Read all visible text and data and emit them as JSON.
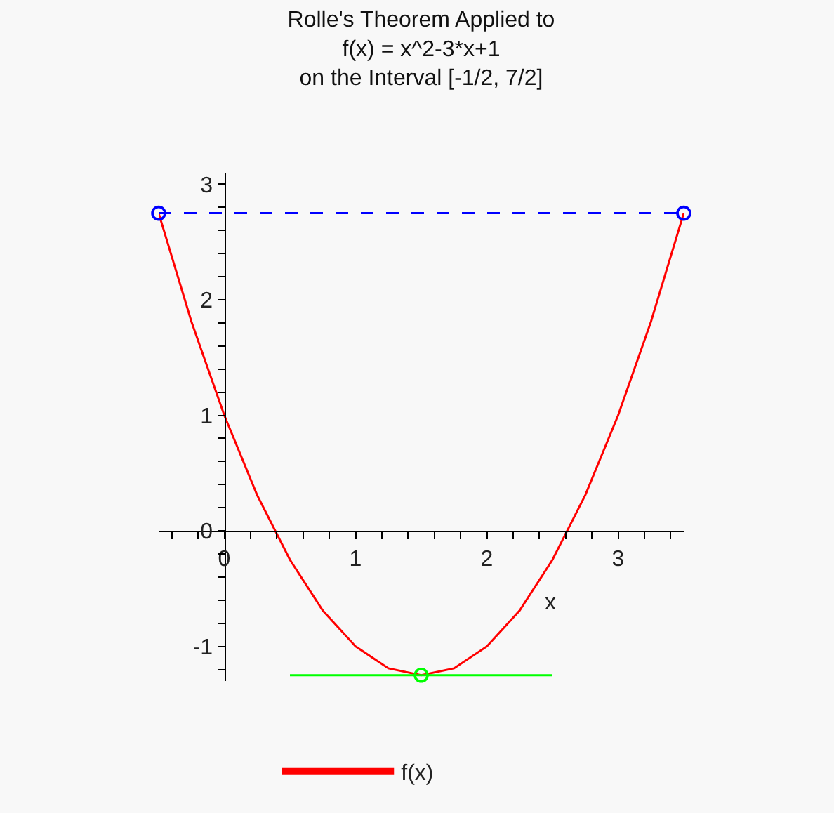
{
  "chart_data": {
    "type": "line",
    "title": "Rolle's Theorem Applied to\nf(x) = x^2-3*x+1\non the Interval [-1/2, 7/2]",
    "xlabel": "x",
    "series": [
      {
        "name": "f(x)",
        "color": "#ff0000",
        "x": [
          -0.5,
          -0.25,
          0,
          0.25,
          0.5,
          0.75,
          1,
          1.25,
          1.5,
          1.75,
          2,
          2.25,
          2.5,
          2.75,
          3,
          3.25,
          3.5
        ],
        "values": [
          2.75,
          1.81,
          1,
          0.31,
          -0.25,
          -0.69,
          -1,
          -1.19,
          -1.25,
          -1.19,
          -1,
          -0.69,
          -0.25,
          0.31,
          1,
          1.81,
          2.75
        ]
      },
      {
        "color": "#0000ff",
        "x": [
          -0.5,
          3.5
        ],
        "values": [
          2.75,
          2.75
        ],
        "line_style": "dashed",
        "marker": "circle"
      },
      {
        "color": "#00ff00",
        "x": [
          0.5,
          2.5
        ],
        "values": [
          -1.25,
          -1.25
        ]
      },
      {
        "type": "scatter",
        "color": "#00ff00",
        "x": [
          1.5
        ],
        "values": [
          -1.25
        ],
        "marker": "circle"
      }
    ],
    "xlim": [
      -0.5,
      3.5
    ],
    "ylim": [
      -1.3,
      3.1
    ],
    "xticks": [
      {
        "value": -0.4,
        "label": null
      },
      {
        "value": -0.2,
        "label": null
      },
      0,
      {
        "value": 0.2,
        "label": null
      },
      {
        "value": 0.4,
        "label": null
      },
      {
        "value": 0.6,
        "label": null
      },
      {
        "value": 0.8,
        "label": null
      },
      1,
      {
        "value": 1.2,
        "label": null
      },
      {
        "value": 1.4,
        "label": null
      },
      {
        "value": 1.6,
        "label": null
      },
      {
        "value": 1.8,
        "label": null
      },
      2,
      {
        "value": 2.2,
        "label": null
      },
      {
        "value": 2.4,
        "label": null
      },
      {
        "value": 2.6,
        "label": null
      },
      {
        "value": 2.8,
        "label": null
      },
      3,
      {
        "value": 3.2,
        "label": null
      },
      {
        "value": 3.4,
        "label": null
      }
    ],
    "yticks": [
      {
        "value": -1.2,
        "label": null
      },
      -1,
      {
        "value": -0.8,
        "label": null
      },
      {
        "value": -0.6,
        "label": null
      },
      {
        "value": -0.4,
        "label": null
      },
      {
        "value": -0.2,
        "label": null
      },
      0,
      {
        "value": 0.2,
        "label": null
      },
      {
        "value": 0.4,
        "label": null
      },
      {
        "value": 0.6,
        "label": null
      },
      {
        "value": 0.8,
        "label": null
      },
      1,
      {
        "value": 1.2,
        "label": null
      },
      {
        "value": 1.4,
        "label": null
      },
      {
        "value": 1.6,
        "label": null
      },
      {
        "value": 1.8,
        "label": null
      },
      2,
      {
        "value": 2.2,
        "label": null
      },
      {
        "value": 2.4,
        "label": null
      },
      {
        "value": 2.6,
        "label": null
      },
      {
        "value": 2.8,
        "label": null
      },
      3
    ],
    "grid": false,
    "legend": "bottom",
    "marker": "none",
    "line_style": "solid"
  }
}
